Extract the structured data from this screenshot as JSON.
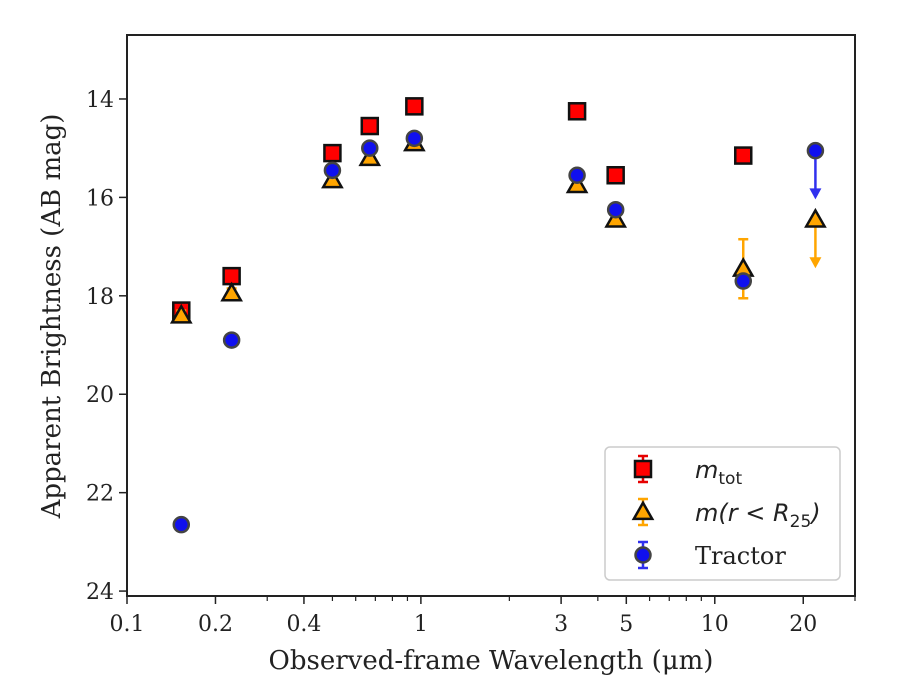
{
  "chart_data": {
    "type": "scatter",
    "xscale": "log",
    "yaxis_inverted": true,
    "xlim": [
      0.1,
      30
    ],
    "ylim": [
      24.1,
      12.7
    ],
    "xlabel": "Observed-frame Wavelength (μm)",
    "ylabel": "Apparent Brightness (AB mag)",
    "x_ticks": [
      0.1,
      0.2,
      0.4,
      1,
      3,
      5,
      10,
      20
    ],
    "x_tick_labels": [
      "0.1",
      "0.2",
      "0.4",
      "1",
      "3",
      "5",
      "10",
      "20"
    ],
    "y_ticks": [
      14,
      16,
      18,
      20,
      22,
      24
    ],
    "y_tick_labels": [
      "14",
      "16",
      "18",
      "20",
      "22",
      "24"
    ],
    "legend_position": "lower-right",
    "series": [
      {
        "name": "m_tot",
        "legend_label_main": "m",
        "legend_label_sub": "tot",
        "marker": "square",
        "color": "#ff0000",
        "errorbar_color": "#e60000",
        "points": [
          {
            "x": 0.153,
            "y": 18.3,
            "err": 0.1
          },
          {
            "x": 0.227,
            "y": 17.6,
            "err": 0.1
          },
          {
            "x": 0.5,
            "y": 15.1,
            "err": 0.05
          },
          {
            "x": 0.67,
            "y": 14.55,
            "err": 0.05
          },
          {
            "x": 0.95,
            "y": 14.15,
            "err": 0.05
          },
          {
            "x": 3.4,
            "y": 14.25,
            "err": 0.05
          },
          {
            "x": 4.6,
            "y": 15.55,
            "err": 0.05
          },
          {
            "x": 12.5,
            "y": 15.15,
            "err": 0.05
          }
        ]
      },
      {
        "name": "m(r < R25)",
        "legend_label_main": "m(r < R",
        "legend_label_sub": "25",
        "legend_label_end": ")",
        "marker": "triangle",
        "color": "#ffa500",
        "errorbar_color": "#ffa500",
        "points": [
          {
            "x": 0.153,
            "y": 18.4,
            "err": 0.1
          },
          {
            "x": 0.227,
            "y": 17.95,
            "err": 0.1
          },
          {
            "x": 0.5,
            "y": 15.65,
            "err": 0.05
          },
          {
            "x": 0.67,
            "y": 15.2,
            "err": 0.05
          },
          {
            "x": 0.95,
            "y": 14.9,
            "err": 0.05
          },
          {
            "x": 3.4,
            "y": 15.75,
            "err": 0.05
          },
          {
            "x": 4.6,
            "y": 16.45,
            "err": 0.05
          },
          {
            "x": 12.5,
            "y": 17.45,
            "err": 0.6
          },
          {
            "x": 22,
            "y": 16.45,
            "upper_limit": true,
            "arrow_to": 17.4
          }
        ]
      },
      {
        "name": "Tractor",
        "marker": "circle",
        "color": "#1010ee",
        "errorbar_color": "#3030ee",
        "points": [
          {
            "x": 0.153,
            "y": 22.65,
            "err": 0.1
          },
          {
            "x": 0.227,
            "y": 18.9,
            "err": 0.1
          },
          {
            "x": 0.5,
            "y": 15.45,
            "err": 0.1
          },
          {
            "x": 0.67,
            "y": 15.0,
            "err": 0.1
          },
          {
            "x": 0.95,
            "y": 14.8,
            "err": 0.1
          },
          {
            "x": 3.4,
            "y": 15.55,
            "err": 0.1
          },
          {
            "x": 4.6,
            "y": 16.25,
            "err": 0.1
          },
          {
            "x": 12.5,
            "y": 17.7,
            "err": 0.1
          },
          {
            "x": 22,
            "y": 15.05,
            "upper_limit": true,
            "arrow_to": 16.0
          }
        ]
      }
    ]
  }
}
